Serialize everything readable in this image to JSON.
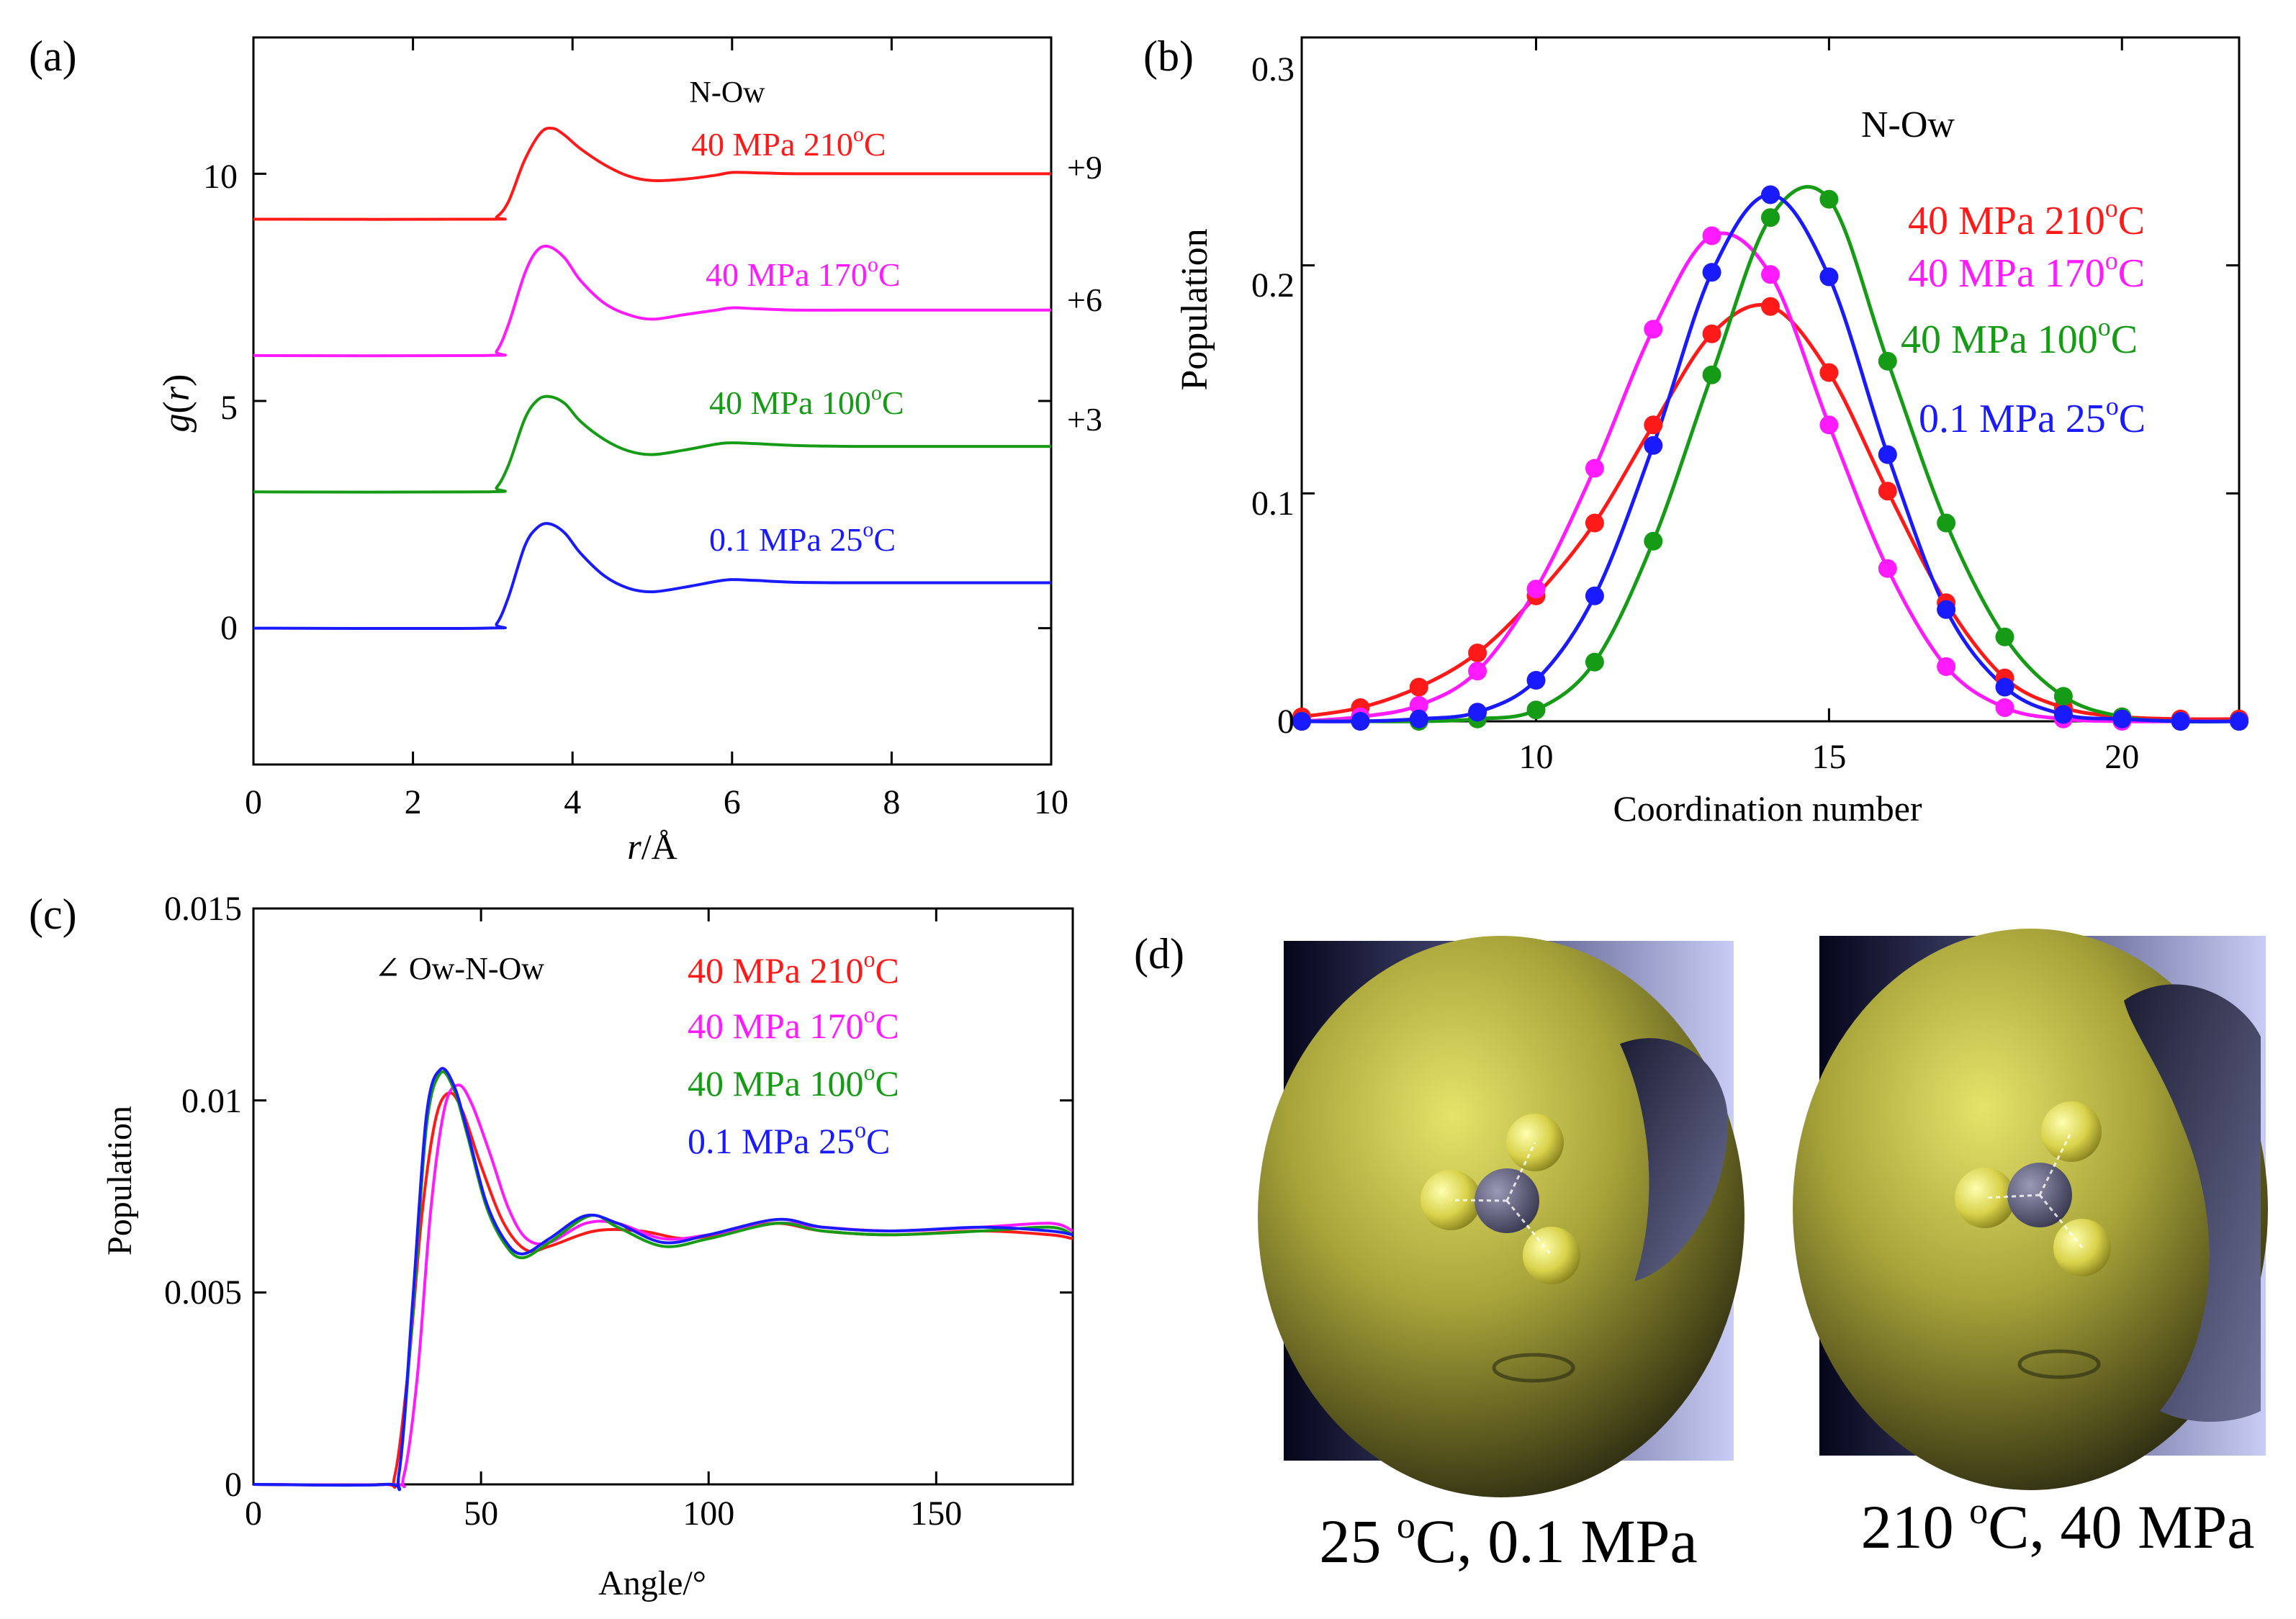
{
  "colors": {
    "red": "#ff1a1a",
    "magenta": "#ff1aff",
    "green": "#159b15",
    "blue": "#1a1aff",
    "axis": "#000000"
  },
  "chart_data": [
    {
      "panel": "(a)",
      "type": "line",
      "title": "N-Ow",
      "xlabel_italic": "r",
      "xlabel_unit": "/Å",
      "ylabel_italic": "g",
      "ylabel_paren_open": "(",
      "ylabel_arg": "r",
      "ylabel_paren_close": ")",
      "xlim": [
        0,
        10
      ],
      "ylim": [
        -3,
        13
      ],
      "x_ticks": [
        0,
        2,
        4,
        6,
        8,
        10
      ],
      "x_tick_labels": [
        "0",
        "2",
        "4",
        "6",
        "8",
        "10"
      ],
      "y_ticks": [
        0,
        5,
        10
      ],
      "y_tick_labels": [
        "0",
        "5",
        "10"
      ],
      "offset_labels": [
        "+9",
        "+6",
        "+3"
      ],
      "series": [
        {
          "name": "40 MPa  210°C",
          "label_main": "40 MPa  210",
          "label_sup": "o",
          "label_tail": "C",
          "color": "red",
          "offset": 9,
          "x": [
            0,
            2.9,
            3.05,
            3.2,
            3.4,
            3.6,
            3.75,
            3.9,
            4.1,
            4.4,
            4.7,
            5.0,
            5.4,
            5.8,
            6.0,
            6.3,
            6.8,
            7.5,
            8.5,
            10
          ],
          "y": [
            0,
            0,
            0.05,
            0.4,
            1.3,
            1.9,
            2.0,
            1.85,
            1.55,
            1.2,
            0.95,
            0.85,
            0.88,
            0.97,
            1.03,
            1.02,
            1.0,
            1.0,
            1.0,
            1.0
          ]
        },
        {
          "name": "40 MPa  170°C",
          "label_main": "40 MPa  170",
          "label_sup": "o",
          "label_tail": "C",
          "color": "magenta",
          "offset": 6,
          "x": [
            0,
            2.9,
            3.05,
            3.2,
            3.4,
            3.55,
            3.7,
            3.9,
            4.1,
            4.4,
            4.7,
            5.0,
            5.4,
            5.8,
            6.0,
            6.3,
            6.8,
            7.5,
            8.5,
            10
          ],
          "y": [
            0,
            0,
            0.1,
            0.7,
            1.8,
            2.3,
            2.4,
            2.15,
            1.65,
            1.15,
            0.9,
            0.8,
            0.9,
            1.0,
            1.05,
            1.03,
            1.0,
            1.0,
            1.0,
            1.0
          ]
        },
        {
          "name": "40 MPa  100°C",
          "label_main": "40 MPa  100",
          "label_sup": "o",
          "label_tail": "C",
          "color": "green",
          "offset": 3,
          "x": [
            0,
            2.9,
            3.05,
            3.2,
            3.4,
            3.55,
            3.7,
            3.9,
            4.1,
            4.4,
            4.7,
            5.0,
            5.4,
            5.8,
            6.0,
            6.3,
            6.8,
            7.5,
            8.5,
            10
          ],
          "y": [
            0,
            0,
            0.1,
            0.6,
            1.6,
            2.0,
            2.1,
            1.95,
            1.55,
            1.15,
            0.9,
            0.82,
            0.92,
            1.05,
            1.08,
            1.06,
            1.02,
            1.0,
            1.0,
            1.0
          ]
        },
        {
          "name": "0.1 MPa  25°C",
          "label_main": "0.1 MPa  25",
          "label_sup": "o",
          "label_tail": "C",
          "color": "blue",
          "offset": 0,
          "x": [
            0,
            2.9,
            3.05,
            3.2,
            3.4,
            3.55,
            3.7,
            3.9,
            4.1,
            4.4,
            4.7,
            5.0,
            5.4,
            5.8,
            6.0,
            6.3,
            6.8,
            7.5,
            8.5,
            10
          ],
          "y": [
            0,
            0,
            0.1,
            0.7,
            1.8,
            2.2,
            2.3,
            2.1,
            1.65,
            1.15,
            0.88,
            0.8,
            0.9,
            1.03,
            1.07,
            1.05,
            1.01,
            1.0,
            1.0,
            1.0
          ]
        }
      ]
    },
    {
      "panel": "(b)",
      "type": "line",
      "title": "N-Ow",
      "xlabel": "Coordination number",
      "ylabel": "Population",
      "xlim": [
        6,
        22
      ],
      "ylim": [
        0,
        0.3
      ],
      "x_ticks": [
        10,
        15,
        20
      ],
      "x_tick_labels": [
        "10",
        "15",
        "20"
      ],
      "y_ticks": [
        0,
        0.1,
        0.2,
        0.3
      ],
      "y_tick_labels": [
        "0",
        "0.1",
        "0.2",
        "0.3"
      ],
      "x": [
        6,
        7,
        8,
        9,
        10,
        11,
        12,
        13,
        14,
        15,
        16,
        17,
        18,
        19,
        20,
        21,
        22
      ],
      "series": [
        {
          "name": "40 MPa  210°C",
          "label_main": "40 MPa  210",
          "label_sup": "o",
          "label_tail": "C",
          "color": "red",
          "values": [
            0.002,
            0.006,
            0.015,
            0.03,
            0.055,
            0.087,
            0.13,
            0.17,
            0.182,
            0.153,
            0.101,
            0.052,
            0.019,
            0.006,
            0.002,
            0.001,
            0.001
          ]
        },
        {
          "name": "40 MPa  170°C",
          "label_main": "40 MPa  170",
          "label_sup": "o",
          "label_tail": "C",
          "color": "magenta",
          "values": [
            0.0,
            0.002,
            0.007,
            0.022,
            0.058,
            0.111,
            0.172,
            0.213,
            0.196,
            0.13,
            0.067,
            0.024,
            0.006,
            0.001,
            0.0,
            0.0,
            0.0
          ]
        },
        {
          "name": "40 MPa  100°C",
          "label_main": "40 MPa  100",
          "label_sup": "o",
          "label_tail": "C",
          "color": "green",
          "values": [
            0.0,
            0.0,
            0.0,
            0.001,
            0.005,
            0.026,
            0.079,
            0.152,
            0.221,
            0.229,
            0.158,
            0.087,
            0.037,
            0.011,
            0.002,
            0.0,
            0.0
          ]
        },
        {
          "name": "0.1 MPa  25°C",
          "label_main": "0.1 MPa  25",
          "label_sup": "o",
          "label_tail": "C",
          "color": "blue",
          "values": [
            0.0,
            0.0,
            0.001,
            0.004,
            0.018,
            0.055,
            0.121,
            0.197,
            0.231,
            0.195,
            0.117,
            0.049,
            0.015,
            0.003,
            0.001,
            0.0,
            0.0
          ]
        }
      ]
    },
    {
      "panel": "(c)",
      "type": "line",
      "title": "∠ Ow-N-Ow",
      "xlabel": "Angle/°",
      "ylabel": "Population",
      "xlim": [
        0,
        180
      ],
      "ylim": [
        0,
        0.015
      ],
      "x_ticks": [
        0,
        50,
        100,
        150
      ],
      "x_tick_labels": [
        "0",
        "50",
        "100",
        "150"
      ],
      "y_ticks": [
        0,
        0.005,
        0.01,
        0.015
      ],
      "y_tick_labels": [
        "0",
        "0.005",
        "0.01",
        "0.015"
      ],
      "series": [
        {
          "name": "40 MPa  210°C",
          "label_main": "40 MPa  210",
          "label_sup": "o",
          "label_tail": "C",
          "color": "red",
          "x": [
            0,
            28,
            31,
            34,
            37,
            40,
            43,
            46,
            50,
            55,
            60,
            65,
            75,
            85,
            95,
            105,
            115,
            125,
            140,
            160,
            175,
            180
          ],
          "y": [
            0,
            0,
            0.0002,
            0.003,
            0.007,
            0.0095,
            0.0102,
            0.0097,
            0.0083,
            0.0068,
            0.0061,
            0.0062,
            0.0066,
            0.0066,
            0.0064,
            0.0066,
            0.0068,
            0.0066,
            0.0065,
            0.0066,
            0.0065,
            0.0064
          ]
        },
        {
          "name": "40 MPa  170°C",
          "label_main": "40 MPa  170",
          "label_sup": "o",
          "label_tail": "C",
          "color": "magenta",
          "x": [
            0,
            30,
            33,
            36,
            39,
            42,
            45,
            48,
            52,
            56,
            60,
            65,
            73,
            80,
            90,
            100,
            115,
            125,
            140,
            160,
            175,
            180
          ],
          "y": [
            0,
            0,
            0.0002,
            0.0028,
            0.0072,
            0.0098,
            0.0104,
            0.0099,
            0.0086,
            0.0072,
            0.0064,
            0.0063,
            0.0068,
            0.0068,
            0.0064,
            0.0065,
            0.0068,
            0.0067,
            0.0066,
            0.0067,
            0.0068,
            0.0066
          ]
        },
        {
          "name": "40 MPa  100°C",
          "label_main": "40 MPa  100",
          "label_sup": "o",
          "label_tail": "C",
          "color": "green",
          "x": [
            0,
            29,
            32,
            35,
            38,
            41,
            44,
            47,
            51,
            55,
            59,
            65,
            74,
            80,
            90,
            100,
            115,
            125,
            140,
            160,
            175,
            180
          ],
          "y": [
            0,
            0,
            0.0003,
            0.0045,
            0.0093,
            0.0107,
            0.0103,
            0.0091,
            0.0073,
            0.0063,
            0.0059,
            0.0063,
            0.007,
            0.0067,
            0.0062,
            0.0064,
            0.0068,
            0.0066,
            0.0065,
            0.0066,
            0.0067,
            0.0065
          ]
        },
        {
          "name": "0.1 MPa  25°C",
          "label_main": "0.1 MPa  25",
          "label_sup": "o",
          "label_tail": "C",
          "color": "blue",
          "x": [
            0,
            29,
            32,
            35,
            38,
            41,
            44,
            47,
            51,
            55,
            59,
            65,
            73,
            80,
            90,
            100,
            115,
            125,
            140,
            160,
            175,
            180
          ],
          "y": [
            0,
            0,
            0.0003,
            0.0048,
            0.0096,
            0.0108,
            0.0104,
            0.0092,
            0.0074,
            0.0064,
            0.006,
            0.0064,
            0.007,
            0.0068,
            0.0063,
            0.0065,
            0.0069,
            0.0067,
            0.0066,
            0.0067,
            0.0066,
            0.0065
          ]
        }
      ]
    }
  ],
  "panel_d": {
    "label": "(d)",
    "images": [
      {
        "caption_left": "25 ",
        "caption_sup": "o",
        "caption_right": "C, 0.1 MPa"
      },
      {
        "caption_left": "210 ",
        "caption_sup": "o",
        "caption_right": "C, 40 MPa"
      }
    ]
  }
}
